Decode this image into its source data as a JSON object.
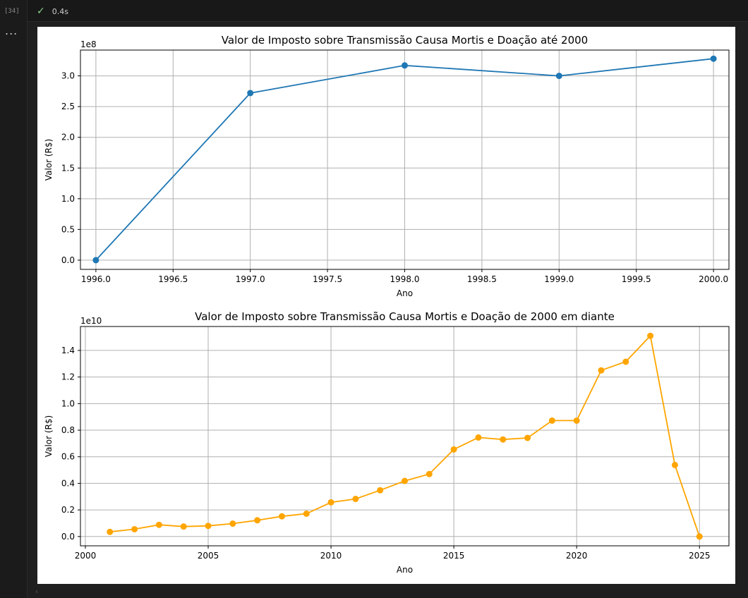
{
  "cell": {
    "execution_count": "[34]",
    "status_time": "0.4s",
    "status_icon": "check-icon",
    "more_label": "..."
  },
  "chart_data": [
    {
      "type": "line",
      "title": "Valor de Imposto sobre Transmissão Causa Mortis e Doação até 2000",
      "xlabel": "Ano",
      "ylabel": "Valor (R$)",
      "scale_label": "1e8",
      "color": "#1f77b4",
      "x": [
        1996,
        1997,
        1998,
        1999,
        2000
      ],
      "y": [
        0.0,
        2.72,
        3.17,
        3.0,
        3.28
      ],
      "xlim": [
        1995.9,
        2000.1
      ],
      "ylim": [
        -0.15,
        3.42
      ],
      "xticks": [
        1996.0,
        1996.5,
        1997.0,
        1997.5,
        1998.0,
        1998.5,
        1999.0,
        1999.5,
        2000.0
      ],
      "xtick_labels": [
        "1996.0",
        "1996.5",
        "1997.0",
        "1997.5",
        "1998.0",
        "1998.5",
        "1999.0",
        "1999.5",
        "2000.0"
      ],
      "yticks": [
        0.0,
        0.5,
        1.0,
        1.5,
        2.0,
        2.5,
        3.0
      ],
      "ytick_labels": [
        "0.0",
        "0.5",
        "1.0",
        "1.5",
        "2.0",
        "2.5",
        "3.0"
      ],
      "grid": true
    },
    {
      "type": "line",
      "title": "Valor de Imposto sobre Transmissão Causa Mortis e Doação de 2000 em diante",
      "xlabel": "Ano",
      "ylabel": "Valor (R$)",
      "scale_label": "1e10",
      "color": "#ffa500",
      "x": [
        2001,
        2002,
        2003,
        2004,
        2005,
        2006,
        2007,
        2008,
        2009,
        2010,
        2011,
        2012,
        2013,
        2014,
        2015,
        2016,
        2017,
        2018,
        2019,
        2020,
        2021,
        2022,
        2023,
        2024,
        2025
      ],
      "y": [
        0.035,
        0.055,
        0.088,
        0.075,
        0.08,
        0.097,
        0.122,
        0.152,
        0.172,
        0.257,
        0.283,
        0.348,
        0.418,
        0.47,
        0.655,
        0.745,
        0.73,
        0.742,
        0.872,
        0.872,
        1.25,
        1.315,
        1.51,
        0.538,
        0.0
      ],
      "xlim": [
        1999.8,
        2026.2
      ],
      "ylim": [
        -0.07,
        1.58
      ],
      "xticks": [
        2000,
        2005,
        2010,
        2015,
        2020,
        2025
      ],
      "xtick_labels": [
        "2000",
        "2005",
        "2010",
        "2015",
        "2020",
        "2025"
      ],
      "yticks": [
        0.0,
        0.2,
        0.4,
        0.6,
        0.8,
        1.0,
        1.2,
        1.4
      ],
      "ytick_labels": [
        "0.0",
        "0.2",
        "0.4",
        "0.6",
        "0.8",
        "1.0",
        "1.2",
        "1.4"
      ],
      "grid": true
    }
  ]
}
